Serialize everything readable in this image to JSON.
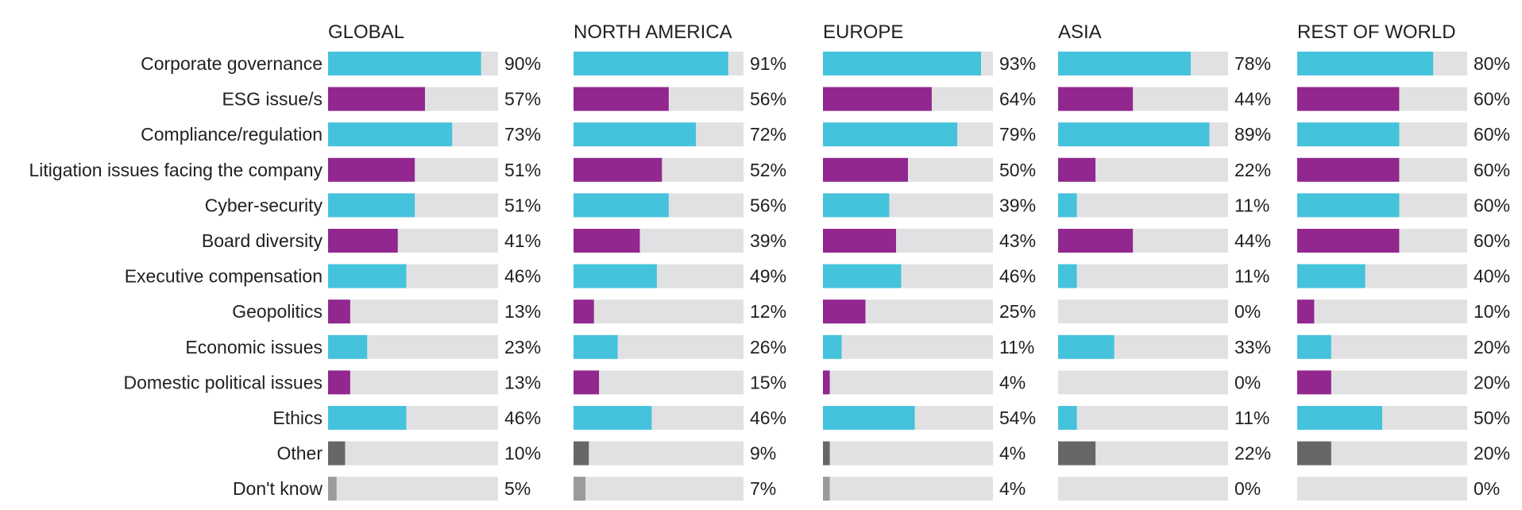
{
  "chart_data": {
    "type": "bar",
    "orientation": "horizontal",
    "title": "",
    "unit": "%",
    "categories": [
      "Corporate governance",
      "ESG issue/s",
      "Compliance/regulation",
      "Litigation issues facing the company",
      "Cyber-security",
      "Board diversity",
      "Executive compensation",
      "Geopolitics",
      "Economic issues",
      "Domestic political issues",
      "Ethics",
      "Other",
      "Don't know"
    ],
    "category_colors": [
      "#45c2dc",
      "#92278f",
      "#45c2dc",
      "#92278f",
      "#45c2dc",
      "#92278f",
      "#45c2dc",
      "#92278f",
      "#45c2dc",
      "#92278f",
      "#45c2dc",
      "#676767",
      "#9b9b9b"
    ],
    "track_color": "#e1e1e3",
    "xlim": [
      0,
      100
    ],
    "panels": [
      {
        "name": "GLOBAL",
        "values": [
          90,
          57,
          73,
          51,
          51,
          41,
          46,
          13,
          23,
          13,
          46,
          10,
          5
        ]
      },
      {
        "name": "NORTH AMERICA",
        "values": [
          91,
          56,
          72,
          52,
          56,
          39,
          49,
          12,
          26,
          15,
          46,
          9,
          7
        ]
      },
      {
        "name": "EUROPE",
        "values": [
          93,
          64,
          79,
          50,
          39,
          43,
          46,
          25,
          11,
          4,
          54,
          4,
          4
        ]
      },
      {
        "name": "ASIA",
        "values": [
          78,
          44,
          89,
          22,
          11,
          44,
          11,
          0,
          33,
          0,
          11,
          22,
          0
        ]
      },
      {
        "name": "REST OF WORLD",
        "values": [
          80,
          60,
          60,
          60,
          60,
          60,
          40,
          10,
          20,
          20,
          50,
          20,
          0
        ]
      }
    ]
  }
}
